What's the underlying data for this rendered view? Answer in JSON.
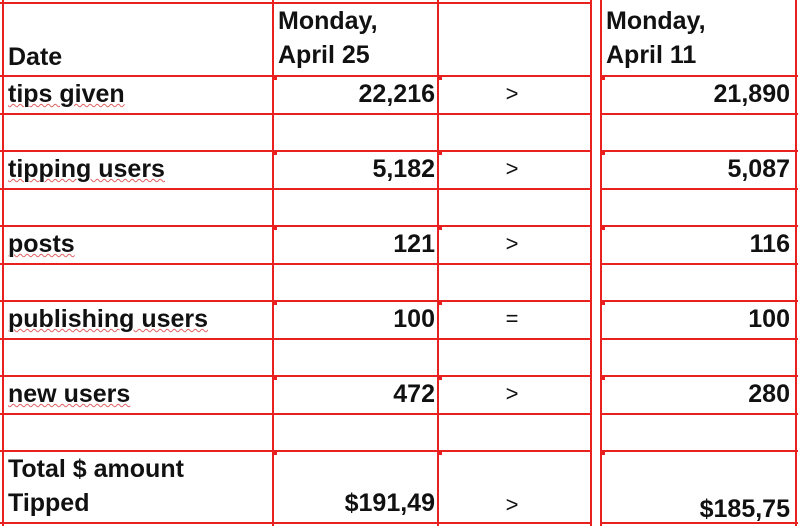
{
  "header": {
    "date": "Date",
    "col1": [
      "Monday,",
      "April 25"
    ],
    "col2": [
      "Monday,",
      "April 11"
    ]
  },
  "rows": [
    {
      "label": "tips given",
      "apr25": "22,216",
      "cmp": ">",
      "apr11": "21,890"
    },
    {
      "label": "tipping users",
      "apr25": "5,182",
      "cmp": ">",
      "apr11": "5,087"
    },
    {
      "label": "posts",
      "apr25": "121",
      "cmp": ">",
      "apr11": "116"
    },
    {
      "label": "publishing users",
      "apr25": "100",
      "cmp": "=",
      "apr11": "100"
    },
    {
      "label": "new users",
      "apr25": "472",
      "cmp": ">",
      "apr11": "280"
    }
  ],
  "total": {
    "label": [
      "Total $ amount",
      "Tipped"
    ],
    "apr25": "$191,49",
    "cmp": ">",
    "apr11": "$185,75"
  }
}
